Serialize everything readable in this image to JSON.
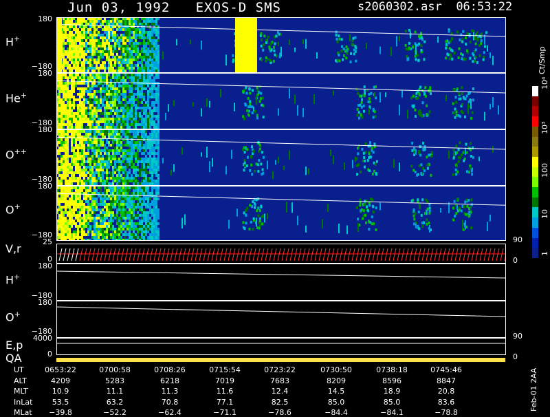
{
  "header": {
    "title": "Jun 03, 1992   EXOS-D SMS",
    "file": "s2060302.asr",
    "time": "06:53:22"
  },
  "panels": [
    {
      "label": "H",
      "sup": "+",
      "ymax": "180",
      "ymin": "−180"
    },
    {
      "label": "He",
      "sup": "+",
      "ymax": "180",
      "ymin": "−180"
    },
    {
      "label": "O",
      "sup": "++",
      "ymax": "180",
      "ymin": "−180"
    },
    {
      "label": "O",
      "sup": "+",
      "ymax": "180",
      "ymin": "−180"
    }
  ],
  "vr_panel": {
    "label": "V,r",
    "ymax": "25",
    "ymin": "0",
    "right_top": "90",
    "right_bottom": "0"
  },
  "hp2": {
    "label": "H",
    "sup": "+",
    "ymax": "180",
    "ymin": "−180"
  },
  "op2": {
    "label": "O",
    "sup": "+",
    "ymax": "180",
    "ymin": "−180"
  },
  "ep": {
    "label": "E,p",
    "ymax": "4000",
    "right_top": "90"
  },
  "qa": {
    "label": "QA",
    "ymin": "0",
    "right_bottom": "0"
  },
  "colorbar": {
    "unit": "Ct/Smp",
    "ticks": [
      "10⁴",
      "10³",
      "100",
      "10",
      "1"
    ],
    "colors": [
      "#ffffff",
      "#7a0000",
      "#b00000",
      "#ff0000",
      "#7a5a00",
      "#8a7a10",
      "#aa9a00",
      "#ffff00",
      "#c8ff00",
      "#7cff00",
      "#00c000",
      "#007800",
      "#00c8c8",
      "#00a0e0",
      "#0050e0",
      "#0020b0",
      "#0a1f8e"
    ]
  },
  "footer": {
    "rows": [
      {
        "name": "UT",
        "values": [
          "0653:22",
          "0700:58",
          "0708:26",
          "0715:54",
          "0723:22",
          "0730:50",
          "0738:18",
          "0745:46"
        ]
      },
      {
        "name": "ALT",
        "values": [
          "4209",
          "5283",
          "6218",
          "7019",
          "7683",
          "8209",
          "8596",
          "8847"
        ]
      },
      {
        "name": "MLT",
        "values": [
          "10.9",
          "11.1",
          "11.3",
          "11.6",
          "12.4",
          "14.5",
          "18.9",
          "20.8"
        ]
      },
      {
        "name": "InLat",
        "values": [
          "53.5",
          "63.2",
          "70.8",
          "77.1",
          "82.5",
          "85.0",
          "85.0",
          "83.6"
        ]
      },
      {
        "name": "MLat",
        "values": [
          "−39.8",
          "−52.2",
          "−62.4",
          "−71.1",
          "−78.6",
          "−84.4",
          "−84.1",
          "−78.8"
        ]
      }
    ],
    "date_stamp": "Feb-01  2AA"
  },
  "chart_data": {
    "type": "heatmap",
    "title": "Jun 03, 1992   EXOS-D SMS",
    "x": [
      "0653:22",
      "0700:58",
      "0708:26",
      "0715:54",
      "0723:22",
      "0730:50",
      "0738:18",
      "0745:46"
    ],
    "series": [
      {
        "name": "H+",
        "ylim": [
          -180,
          180
        ]
      },
      {
        "name": "He+",
        "ylim": [
          -180,
          180
        ]
      },
      {
        "name": "O++",
        "ylim": [
          -180,
          180
        ]
      },
      {
        "name": "O+",
        "ylim": [
          -180,
          180
        ]
      }
    ],
    "colorscale_unit": "Ct/Smp"
  }
}
